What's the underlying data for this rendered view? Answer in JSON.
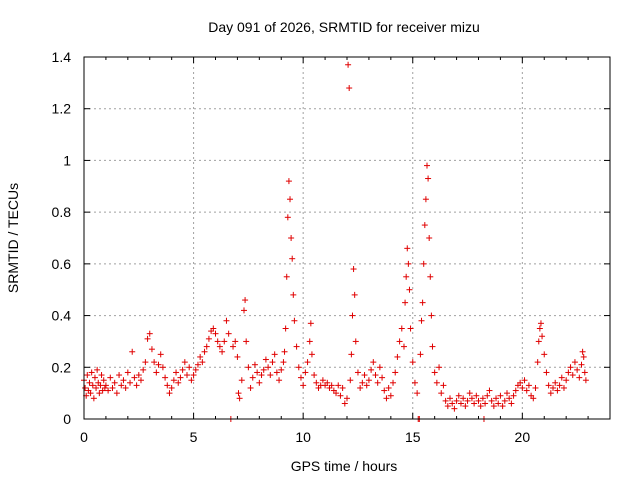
{
  "chart_data": {
    "type": "scatter",
    "title": "Day 091 of 2026, SRMTID for receiver mizu",
    "xlabel": "GPS time / hours",
    "ylabel": "SRMTID / TECUs",
    "xlim": [
      0,
      24
    ],
    "ylim": [
      0,
      1.4
    ],
    "xticks": [
      0,
      5,
      10,
      15,
      20
    ],
    "xtick_labels": [
      "0",
      "5",
      "10",
      "15",
      "20"
    ],
    "yticks": [
      0,
      0.2,
      0.4,
      0.6,
      0.8,
      1.0,
      1.2,
      1.4
    ],
    "ytick_labels": [
      "0",
      "0.2",
      "0.4",
      "0.6",
      "0.8",
      "1",
      "1.2",
      "1.4"
    ],
    "grid": true,
    "marker": "+",
    "color": "#e00000",
    "series": [
      {
        "name": "SRMTID",
        "points": [
          [
            0.0,
            0.15
          ],
          [
            0.05,
            0.12
          ],
          [
            0.1,
            0.09
          ],
          [
            0.15,
            0.17
          ],
          [
            0.2,
            0.11
          ],
          [
            0.25,
            0.14
          ],
          [
            0.3,
            0.1
          ],
          [
            0.35,
            0.18
          ],
          [
            0.4,
            0.13
          ],
          [
            0.45,
            0.08
          ],
          [
            0.5,
            0.16
          ],
          [
            0.55,
            0.12
          ],
          [
            0.6,
            0.19
          ],
          [
            0.65,
            0.14
          ],
          [
            0.7,
            0.1
          ],
          [
            0.75,
            0.13
          ],
          [
            0.8,
            0.17
          ],
          [
            0.85,
            0.11
          ],
          [
            0.9,
            0.15
          ],
          [
            0.95,
            0.12
          ],
          [
            1.0,
            0.13
          ],
          [
            1.1,
            0.11
          ],
          [
            1.2,
            0.16
          ],
          [
            1.3,
            0.12
          ],
          [
            1.4,
            0.14
          ],
          [
            1.5,
            0.1
          ],
          [
            1.6,
            0.17
          ],
          [
            1.7,
            0.13
          ],
          [
            1.8,
            0.15
          ],
          [
            1.9,
            0.12
          ],
          [
            2.0,
            0.18
          ],
          [
            2.1,
            0.14
          ],
          [
            2.2,
            0.26
          ],
          [
            2.3,
            0.16
          ],
          [
            2.4,
            0.13
          ],
          [
            2.5,
            0.17
          ],
          [
            2.6,
            0.15
          ],
          [
            2.7,
            0.19
          ],
          [
            2.8,
            0.22
          ],
          [
            2.9,
            0.31
          ],
          [
            3.0,
            0.33
          ],
          [
            3.1,
            0.27
          ],
          [
            3.2,
            0.22
          ],
          [
            3.3,
            0.18
          ],
          [
            3.4,
            0.21
          ],
          [
            3.5,
            0.25
          ],
          [
            3.6,
            0.2
          ],
          [
            3.7,
            0.16
          ],
          [
            3.8,
            0.13
          ],
          [
            3.9,
            0.1
          ],
          [
            4.0,
            0.12
          ],
          [
            4.1,
            0.15
          ],
          [
            4.2,
            0.18
          ],
          [
            4.3,
            0.14
          ],
          [
            4.4,
            0.16
          ],
          [
            4.5,
            0.19
          ],
          [
            4.6,
            0.22
          ],
          [
            4.7,
            0.17
          ],
          [
            4.8,
            0.2
          ],
          [
            4.9,
            0.15
          ],
          [
            5.0,
            0.17
          ],
          [
            5.1,
            0.19
          ],
          [
            5.2,
            0.21
          ],
          [
            5.3,
            0.24
          ],
          [
            5.4,
            0.22
          ],
          [
            5.5,
            0.26
          ],
          [
            5.6,
            0.28
          ],
          [
            5.7,
            0.31
          ],
          [
            5.8,
            0.34
          ],
          [
            5.9,
            0.35
          ],
          [
            6.0,
            0.33
          ],
          [
            6.1,
            0.3
          ],
          [
            6.2,
            0.28
          ],
          [
            6.3,
            0.26
          ],
          [
            6.4,
            0.3
          ],
          [
            6.5,
            0.38
          ],
          [
            6.6,
            0.33
          ],
          [
            6.7,
            0.0
          ],
          [
            6.8,
            0.28
          ],
          [
            6.9,
            0.3
          ],
          [
            7.0,
            0.24
          ],
          [
            7.05,
            0.1
          ],
          [
            7.1,
            0.08
          ],
          [
            7.2,
            0.15
          ],
          [
            7.3,
            0.42
          ],
          [
            7.35,
            0.46
          ],
          [
            7.4,
            0.3
          ],
          [
            7.5,
            0.2
          ],
          [
            7.6,
            0.12
          ],
          [
            7.7,
            0.16
          ],
          [
            7.8,
            0.21
          ],
          [
            7.9,
            0.18
          ],
          [
            8.0,
            0.14
          ],
          [
            8.1,
            0.17
          ],
          [
            8.2,
            0.19
          ],
          [
            8.3,
            0.23
          ],
          [
            8.4,
            0.2
          ],
          [
            8.5,
            0.17
          ],
          [
            8.6,
            0.22
          ],
          [
            8.7,
            0.25
          ],
          [
            8.8,
            0.18
          ],
          [
            8.9,
            0.15
          ],
          [
            9.0,
            0.19
          ],
          [
            9.1,
            0.22
          ],
          [
            9.15,
            0.26
          ],
          [
            9.2,
            0.35
          ],
          [
            9.25,
            0.55
          ],
          [
            9.3,
            0.78
          ],
          [
            9.35,
            0.92
          ],
          [
            9.4,
            0.85
          ],
          [
            9.45,
            0.7
          ],
          [
            9.5,
            0.62
          ],
          [
            9.55,
            0.48
          ],
          [
            9.6,
            0.38
          ],
          [
            9.7,
            0.28
          ],
          [
            9.8,
            0.2
          ],
          [
            9.9,
            0.16
          ],
          [
            10.0,
            0.13
          ],
          [
            10.1,
            0.18
          ],
          [
            10.2,
            0.22
          ],
          [
            10.3,
            0.3
          ],
          [
            10.35,
            0.37
          ],
          [
            10.4,
            0.25
          ],
          [
            10.5,
            0.17
          ],
          [
            10.6,
            0.14
          ],
          [
            10.7,
            0.12
          ],
          [
            10.8,
            0.13
          ],
          [
            10.9,
            0.15
          ],
          [
            11.0,
            0.13
          ],
          [
            11.1,
            0.14
          ],
          [
            11.2,
            0.12
          ],
          [
            11.3,
            0.13
          ],
          [
            11.4,
            0.11
          ],
          [
            11.5,
            0.1
          ],
          [
            11.6,
            0.13
          ],
          [
            11.7,
            0.09
          ],
          [
            11.8,
            0.12
          ],
          [
            11.9,
            0.06
          ],
          [
            12.0,
            0.08
          ],
          [
            12.05,
            1.37
          ],
          [
            12.1,
            1.28
          ],
          [
            12.15,
            0.15
          ],
          [
            12.2,
            0.25
          ],
          [
            12.25,
            0.4
          ],
          [
            12.3,
            0.58
          ],
          [
            12.35,
            0.48
          ],
          [
            12.4,
            0.3
          ],
          [
            12.5,
            0.18
          ],
          [
            12.6,
            0.12
          ],
          [
            12.7,
            0.14
          ],
          [
            12.8,
            0.17
          ],
          [
            12.9,
            0.13
          ],
          [
            13.0,
            0.15
          ],
          [
            13.1,
            0.19
          ],
          [
            13.2,
            0.22
          ],
          [
            13.3,
            0.17
          ],
          [
            13.4,
            0.14
          ],
          [
            13.5,
            0.2
          ],
          [
            13.6,
            0.16
          ],
          [
            13.7,
            0.11
          ],
          [
            13.8,
            0.08
          ],
          [
            13.9,
            0.12
          ],
          [
            14.0,
            0.09
          ],
          [
            14.1,
            0.14
          ],
          [
            14.2,
            0.18
          ],
          [
            14.3,
            0.24
          ],
          [
            14.4,
            0.3
          ],
          [
            14.5,
            0.35
          ],
          [
            14.6,
            0.28
          ],
          [
            14.65,
            0.45
          ],
          [
            14.7,
            0.55
          ],
          [
            14.75,
            0.66
          ],
          [
            14.8,
            0.6
          ],
          [
            14.85,
            0.5
          ],
          [
            14.9,
            0.35
          ],
          [
            15.0,
            0.22
          ],
          [
            15.1,
            0.14
          ],
          [
            15.2,
            0.1
          ],
          [
            15.25,
            0.0
          ],
          [
            15.3,
            0.0
          ],
          [
            15.35,
            0.25
          ],
          [
            15.4,
            0.38
          ],
          [
            15.45,
            0.45
          ],
          [
            15.5,
            0.6
          ],
          [
            15.55,
            0.75
          ],
          [
            15.6,
            0.85
          ],
          [
            15.65,
            0.98
          ],
          [
            15.7,
            0.93
          ],
          [
            15.75,
            0.7
          ],
          [
            15.8,
            0.55
          ],
          [
            15.85,
            0.4
          ],
          [
            15.9,
            0.28
          ],
          [
            16.0,
            0.18
          ],
          [
            16.1,
            0.14
          ],
          [
            16.2,
            0.2
          ],
          [
            16.3,
            0.1
          ],
          [
            16.4,
            0.13
          ],
          [
            16.5,
            0.07
          ],
          [
            16.6,
            0.05
          ],
          [
            16.7,
            0.08
          ],
          [
            16.8,
            0.06
          ],
          [
            16.9,
            0.04
          ],
          [
            17.0,
            0.07
          ],
          [
            17.1,
            0.09
          ],
          [
            17.2,
            0.06
          ],
          [
            17.3,
            0.08
          ],
          [
            17.4,
            0.05
          ],
          [
            17.5,
            0.07
          ],
          [
            17.6,
            0.1
          ],
          [
            17.7,
            0.08
          ],
          [
            17.8,
            0.06
          ],
          [
            17.9,
            0.09
          ],
          [
            18.0,
            0.07
          ],
          [
            18.1,
            0.05
          ],
          [
            18.2,
            0.08
          ],
          [
            18.25,
            0.0
          ],
          [
            18.3,
            0.06
          ],
          [
            18.4,
            0.09
          ],
          [
            18.5,
            0.11
          ],
          [
            18.6,
            0.07
          ],
          [
            18.7,
            0.05
          ],
          [
            18.8,
            0.08
          ],
          [
            18.9,
            0.06
          ],
          [
            19.0,
            0.09
          ],
          [
            19.1,
            0.05
          ],
          [
            19.2,
            0.07
          ],
          [
            19.3,
            0.1
          ],
          [
            19.4,
            0.08
          ],
          [
            19.5,
            0.06
          ],
          [
            19.6,
            0.09
          ],
          [
            19.7,
            0.11
          ],
          [
            19.8,
            0.13
          ],
          [
            19.9,
            0.14
          ],
          [
            20.0,
            0.12
          ],
          [
            20.1,
            0.15
          ],
          [
            20.2,
            0.11
          ],
          [
            20.3,
            0.13
          ],
          [
            20.4,
            0.09
          ],
          [
            20.5,
            0.08
          ],
          [
            20.6,
            0.12
          ],
          [
            20.7,
            0.22
          ],
          [
            20.75,
            0.3
          ],
          [
            20.8,
            0.35
          ],
          [
            20.85,
            0.37
          ],
          [
            20.9,
            0.32
          ],
          [
            21.0,
            0.25
          ],
          [
            21.1,
            0.18
          ],
          [
            21.2,
            0.13
          ],
          [
            21.3,
            0.1
          ],
          [
            21.4,
            0.12
          ],
          [
            21.5,
            0.14
          ],
          [
            21.6,
            0.11
          ],
          [
            21.7,
            0.13
          ],
          [
            21.8,
            0.16
          ],
          [
            21.9,
            0.12
          ],
          [
            22.0,
            0.15
          ],
          [
            22.1,
            0.18
          ],
          [
            22.2,
            0.2
          ],
          [
            22.3,
            0.17
          ],
          [
            22.4,
            0.22
          ],
          [
            22.5,
            0.19
          ],
          [
            22.6,
            0.16
          ],
          [
            22.7,
            0.21
          ],
          [
            22.75,
            0.26
          ],
          [
            22.8,
            0.24
          ],
          [
            22.85,
            0.18
          ],
          [
            22.9,
            0.15
          ]
        ]
      }
    ]
  }
}
